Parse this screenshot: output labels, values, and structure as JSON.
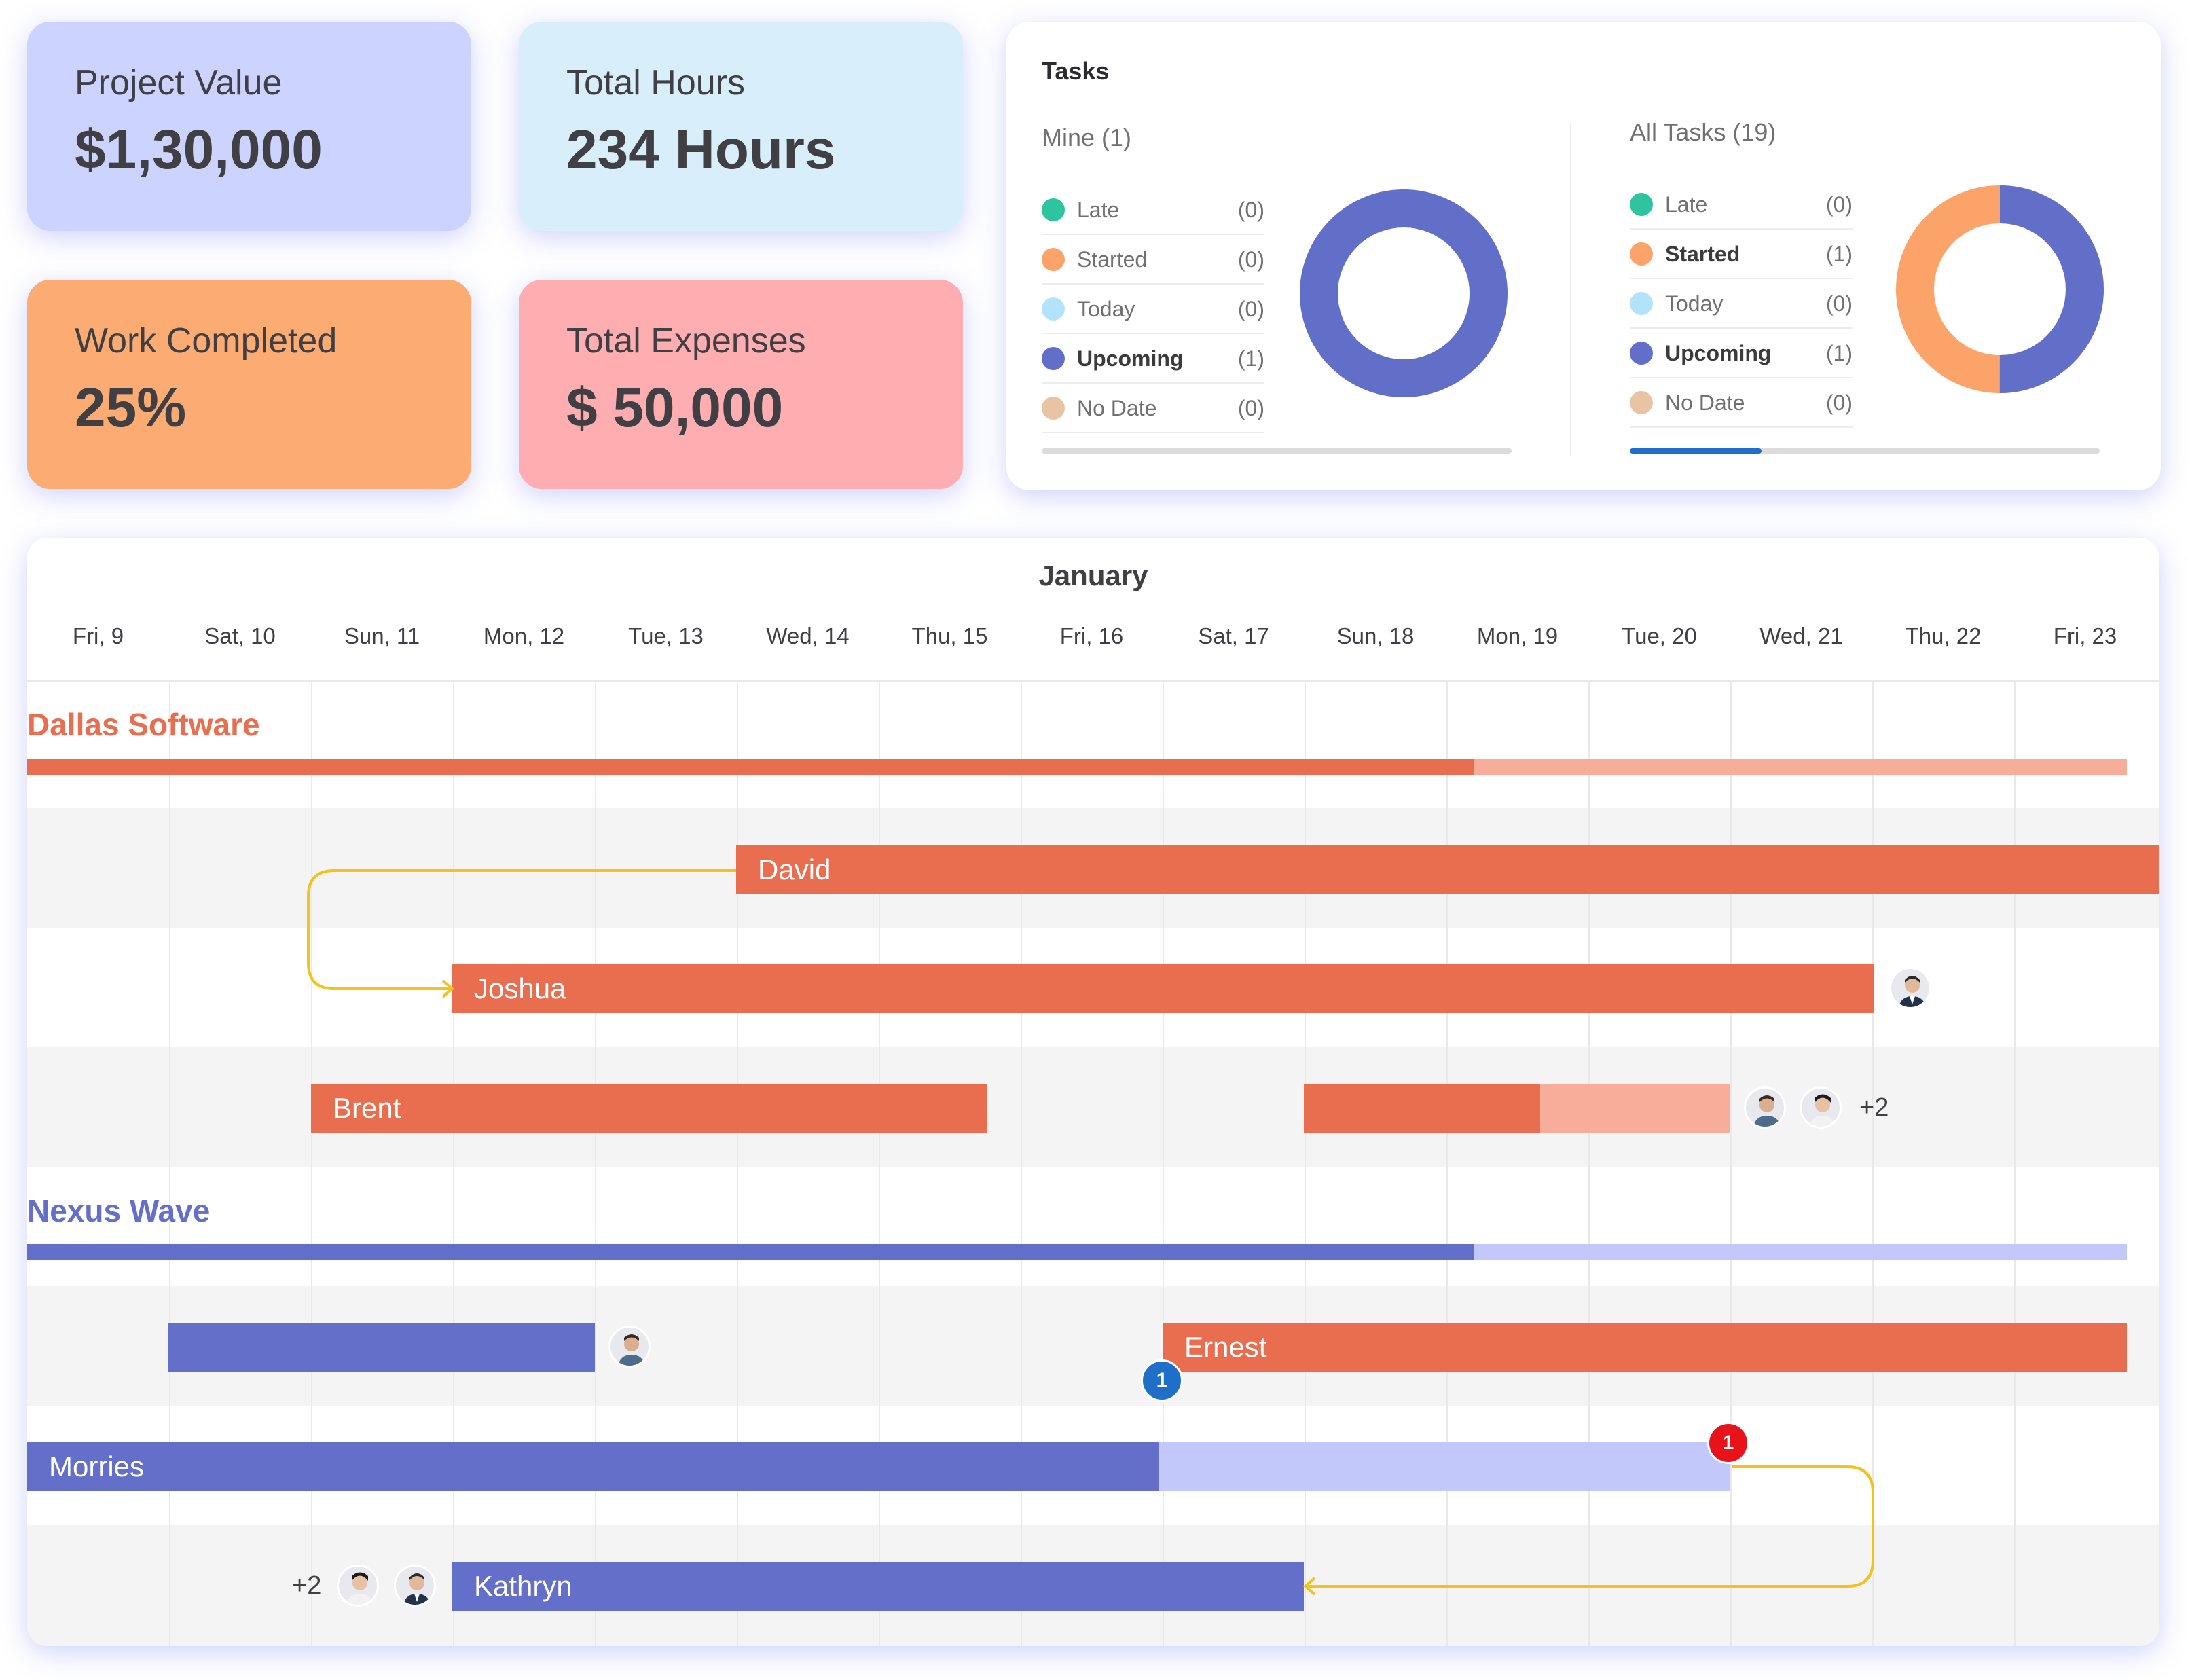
{
  "stats": {
    "project_value": {
      "label": "Project Value",
      "value": "$1,30,000"
    },
    "total_hours": {
      "label": "Total Hours",
      "value": "234 Hours"
    },
    "work_completed": {
      "label": "Work Completed",
      "value": "25%"
    },
    "total_expenses": {
      "label": "Total Expenses",
      "value": "$ 50,000"
    }
  },
  "colors": {
    "project_value_bg": "#cdd3ff",
    "total_hours_bg": "#d8eefb",
    "work_completed_bg": "#fcac72",
    "total_expenses_bg": "#feadb0",
    "late": "#2ec4a0",
    "started": "#fca36a",
    "today": "#b3e2fb",
    "upcoming": "#626fc8",
    "no_date": "#e8c4a4",
    "orange_bar": "#e86e4f",
    "orange_light": "#f7ad99",
    "purple_bar": "#636fc8",
    "purple_light": "#c2c8fa",
    "dependency": "#f3c21b"
  },
  "tasks": {
    "title": "Tasks",
    "mine": {
      "title": "Mine (1)",
      "rows": [
        {
          "label": "Late",
          "count": "(0)"
        },
        {
          "label": "Started",
          "count": "(0)"
        },
        {
          "label": "Today",
          "count": "(0)"
        },
        {
          "label": "Upcoming",
          "count": "(1)"
        },
        {
          "label": "No Date",
          "count": "(0)"
        }
      ],
      "progress": 0
    },
    "all": {
      "title": "All Tasks (19)",
      "rows": [
        {
          "label": "Late",
          "count": "(0)"
        },
        {
          "label": "Started",
          "count": "(1)"
        },
        {
          "label": "Today",
          "count": "(0)"
        },
        {
          "label": "Upcoming",
          "count": "(1)"
        },
        {
          "label": "No Date",
          "count": "(0)"
        }
      ],
      "progress": 0.28
    }
  },
  "gantt": {
    "month": "January",
    "days": [
      "Fri, 9",
      "Sat, 10",
      "Sun, 11",
      "Mon, 12",
      "Tue, 13",
      "Wed, 14",
      "Thu, 15",
      "Fri, 16",
      "Sat, 17",
      "Sun, 18",
      "Mon, 19",
      "Tue, 20",
      "Wed, 21",
      "Thu, 22",
      "Fri, 23"
    ],
    "groups": [
      {
        "name": "Dallas Software"
      },
      {
        "name": "Nexus Wave"
      }
    ],
    "bars": {
      "david": "David",
      "joshua": "Joshua",
      "brent": "Brent",
      "ernest": "Ernest",
      "morries": "Morries",
      "kathryn": "Kathryn"
    },
    "extra_brent": "+2",
    "extra_kathryn": "+2",
    "badge_blue": "1",
    "badge_red": "1"
  }
}
